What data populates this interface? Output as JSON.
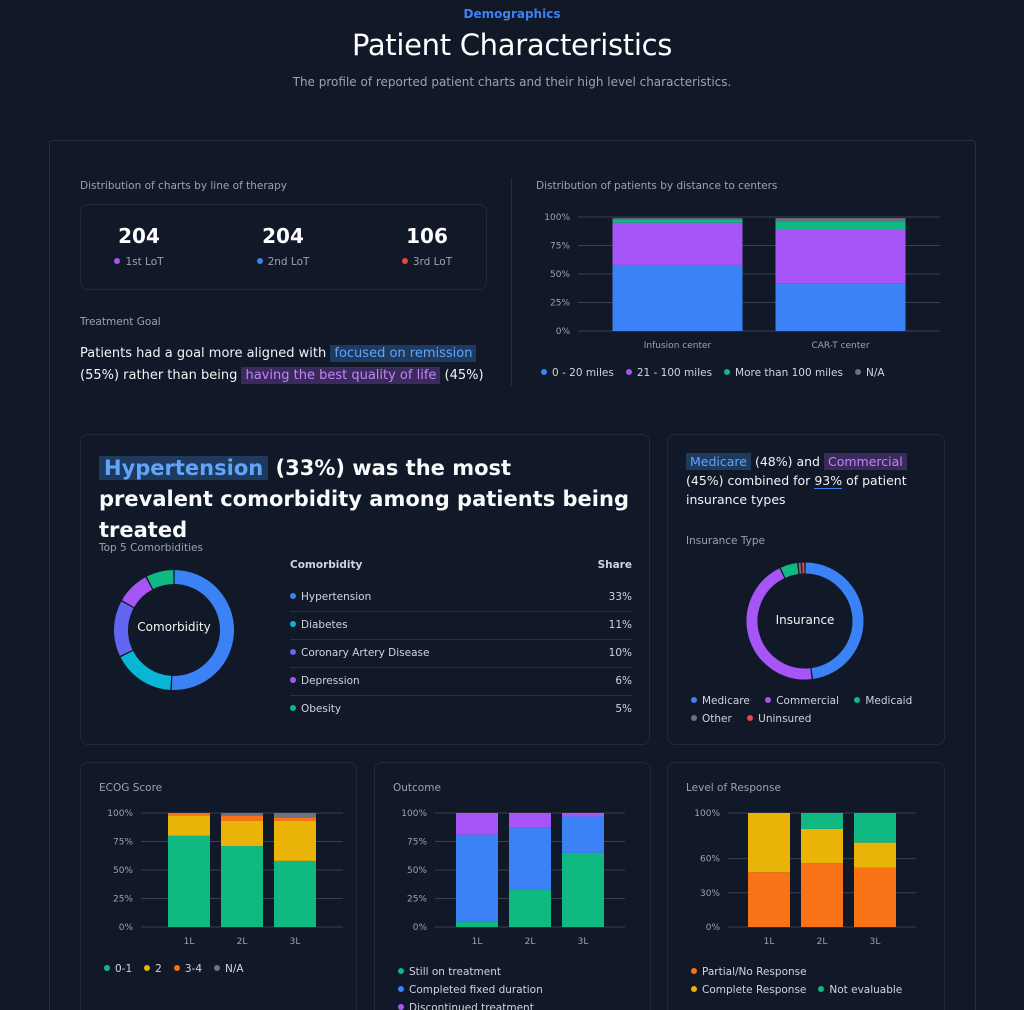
{
  "header": {
    "eyebrow": "Demographics",
    "title": "Patient Characteristics",
    "subtitle": "The profile of reported patient charts and their high level characteristics."
  },
  "colors": {
    "blue": "#3b82f6",
    "purple": "#a855f7",
    "green": "#10b981",
    "gray": "#6b7280",
    "cyan": "#06b6d4",
    "indigo": "#6366f1",
    "yellow": "#eab308",
    "orange": "#f97316",
    "red": "#ef4444"
  },
  "lot": {
    "label": "Distribution of charts by line of therapy",
    "stats": [
      {
        "value": "204",
        "label": "1st LoT",
        "color": "#a855f7"
      },
      {
        "value": "204",
        "label": "2nd LoT",
        "color": "#3b82f6"
      },
      {
        "value": "106",
        "label": "3rd LoT",
        "color": "#ef4444"
      }
    ]
  },
  "goal": {
    "label": "Treatment Goal",
    "text1": "Patients had a goal more aligned with",
    "hl1": "focused on remission",
    "text2": "(55%) rather than being",
    "hl2": "having the best quality of life",
    "text3": "(45%)"
  },
  "comorbidity": {
    "head_hl": "Hypertension",
    "head_rest": "(33%) was the most prevalent comorbidity among patients being treated",
    "label": "Top 5 Comorbidities",
    "center": "Comorbidity",
    "col1": "Comorbidity",
    "col2": "Share",
    "rows": [
      {
        "name": "Hypertension",
        "share": "33%",
        "color": "#3b82f6"
      },
      {
        "name": "Diabetes",
        "share": "11%",
        "color": "#06b6d4"
      },
      {
        "name": "Coronary Artery Disease",
        "share": "10%",
        "color": "#6366f1"
      },
      {
        "name": "Depression",
        "share": "6%",
        "color": "#a855f7"
      },
      {
        "name": "Obesity",
        "share": "5%",
        "color": "#10b981"
      }
    ]
  },
  "insurance": {
    "hl1": "Medicare",
    "t1": "(48%) and",
    "hl2": "Commercial",
    "t2": "(45%) combined for",
    "ul": "93%",
    "t3": "of patient insurance types",
    "label": "Insurance Type",
    "center": "Insurance",
    "legend": [
      {
        "name": "Medicare",
        "color": "#3b82f6"
      },
      {
        "name": "Commercial",
        "color": "#a855f7"
      },
      {
        "name": "Medicaid",
        "color": "#10b981"
      },
      {
        "name": "Other",
        "color": "#6b7280"
      },
      {
        "name": "Uninsured",
        "color": "#ef4444"
      }
    ]
  },
  "labels": {
    "distance": "Distribution of patients by distance to centers",
    "ecog": "ECOG Score",
    "outcome": "Outcome",
    "response": "Level of Response"
  },
  "chart_data": [
    {
      "id": "distance",
      "type": "bar",
      "stacked": true,
      "title": "Distribution of patients by distance to centers",
      "categories": [
        "Infusion center",
        "CAR-T center"
      ],
      "yticks": [
        "0%",
        "25%",
        "50%",
        "75%",
        "100%"
      ],
      "ylim": [
        0,
        100
      ],
      "series": [
        {
          "name": "0 - 20 miles",
          "color": "#3b82f6",
          "values": [
            58,
            42
          ]
        },
        {
          "name": "21 - 100 miles",
          "color": "#a855f7",
          "values": [
            37,
            47
          ]
        },
        {
          "name": "More than 100 miles",
          "color": "#10b981",
          "values": [
            3,
            7
          ]
        },
        {
          "name": "N/A",
          "color": "#6b7280",
          "values": [
            1,
            3
          ]
        }
      ]
    },
    {
      "id": "comorb_donut",
      "type": "pie",
      "title": "Top 5 Comorbidities",
      "labels": [
        "Hypertension",
        "Diabetes",
        "Coronary Artery Disease",
        "Depression",
        "Obesity"
      ],
      "values": [
        33,
        11,
        10,
        6,
        5
      ],
      "colors": [
        "#3b82f6",
        "#06b6d4",
        "#6366f1",
        "#a855f7",
        "#10b981"
      ]
    },
    {
      "id": "insurance_donut",
      "type": "pie",
      "title": "Insurance Type",
      "labels": [
        "Medicare",
        "Commercial",
        "Medicaid",
        "Other",
        "Uninsured"
      ],
      "values": [
        48,
        45,
        5,
        1,
        1
      ],
      "colors": [
        "#3b82f6",
        "#a855f7",
        "#10b981",
        "#6b7280",
        "#ef4444"
      ]
    },
    {
      "id": "ecog",
      "type": "bar",
      "stacked": true,
      "title": "ECOG Score",
      "categories": [
        "1L",
        "2L",
        "3L"
      ],
      "yticks": [
        "0%",
        "25%",
        "50%",
        "75%",
        "100%"
      ],
      "ylim": [
        0,
        100
      ],
      "series": [
        {
          "name": "0-1",
          "color": "#10b981",
          "values": [
            80,
            71,
            58
          ]
        },
        {
          "name": "2",
          "color": "#eab308",
          "values": [
            18,
            22,
            35
          ]
        },
        {
          "name": "3-4",
          "color": "#f97316",
          "values": [
            2,
            5,
            3
          ]
        },
        {
          "name": "N/A",
          "color": "#6b7280",
          "values": [
            0,
            2,
            4
          ]
        }
      ]
    },
    {
      "id": "outcome",
      "type": "bar",
      "stacked": true,
      "title": "Outcome",
      "categories": [
        "1L",
        "2L",
        "3L"
      ],
      "yticks": [
        "0%",
        "25%",
        "50%",
        "75%",
        "100%"
      ],
      "ylim": [
        0,
        100
      ],
      "series": [
        {
          "name": "Still on treatment",
          "color": "#10b981",
          "values": [
            5,
            33,
            65
          ]
        },
        {
          "name": "Completed fixed duration",
          "color": "#3b82f6",
          "values": [
            76,
            54,
            32
          ]
        },
        {
          "name": "Discontinued treatment",
          "color": "#a855f7",
          "values": [
            19,
            13,
            3
          ]
        }
      ]
    },
    {
      "id": "response",
      "type": "bar",
      "stacked": true,
      "title": "Level of Response",
      "categories": [
        "1L",
        "2L",
        "3L"
      ],
      "yticks": [
        "0%",
        "30%",
        "60%",
        "100%"
      ],
      "ylim": [
        0,
        100
      ],
      "series": [
        {
          "name": "Partial/No Response",
          "color": "#f97316",
          "values": [
            48,
            56,
            52
          ]
        },
        {
          "name": "Complete Response",
          "color": "#eab308",
          "values": [
            52,
            30,
            22
          ]
        },
        {
          "name": "Not evaluable",
          "color": "#10b981",
          "values": [
            0,
            14,
            26
          ]
        }
      ]
    }
  ]
}
